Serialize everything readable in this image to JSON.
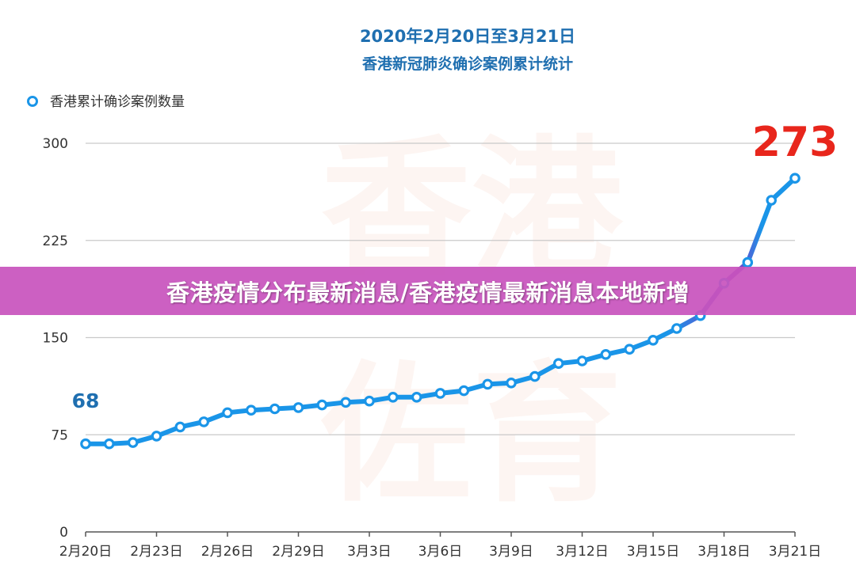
{
  "banner": {
    "text": "香港疫情分布最新消息/香港疫情最新消息本地新增"
  },
  "watermark": {
    "chars": [
      "香",
      "港",
      "佐",
      "育"
    ]
  },
  "colors": {
    "series": "#1a95e8",
    "series_end": "#7a3cc8",
    "start_label": "#1f6fb0",
    "end_label": "#e8261c",
    "banner": "#c854bd"
  },
  "chart_data": {
    "type": "line",
    "title": "2020年2月20日至3月21日",
    "subtitle": "香港新冠肺炎确诊案例累计统计",
    "legend": {
      "label": "香港累计确诊案例数量",
      "position": "top-left"
    },
    "ylim": [
      0,
      300
    ],
    "yticks": [
      "0",
      "75",
      "150",
      "225",
      "300"
    ],
    "xlim": [
      0,
      30
    ],
    "xtick_labels": [
      "2月20日",
      "2月23日",
      "2月26日",
      "2月29日",
      "3月3日",
      "3月6日",
      "3月9日",
      "3月12日",
      "3月15日",
      "3月18日",
      "3月21日"
    ],
    "grid": true,
    "start_label": "68",
    "end_label": "273",
    "series": [
      {
        "name": "香港累计确诊案例数量",
        "values": [
          68,
          68,
          69,
          74,
          81,
          85,
          92,
          94,
          95,
          96,
          98,
          100,
          101,
          104,
          104,
          107,
          109,
          114,
          115,
          120,
          130,
          132,
          137,
          141,
          148,
          157,
          167,
          192,
          208,
          256,
          273
        ]
      }
    ]
  }
}
